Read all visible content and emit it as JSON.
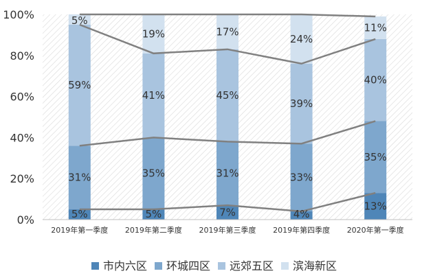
{
  "chart_data": {
    "type": "bar",
    "stacked": true,
    "percent": true,
    "categories": [
      "2019年第一季度",
      "2019年第二季度",
      "2019年第三季度",
      "2019年第四季度",
      "2020年第一季度"
    ],
    "series": [
      {
        "name": "市内六区",
        "values": [
          5,
          5,
          7,
          4,
          13
        ],
        "labels": [
          "5%",
          "5%",
          "7%",
          "4%",
          "13%"
        ],
        "color": "#4f86b8"
      },
      {
        "name": "环城四区",
        "values": [
          31,
          35,
          31,
          33,
          35
        ],
        "labels": [
          "31%",
          "35%",
          "31%",
          "33%",
          "35%"
        ],
        "color": "#7ea7cd"
      },
      {
        "name": "远郊五区",
        "values": [
          59,
          41,
          45,
          39,
          40
        ],
        "labels": [
          "59%",
          "41%",
          "45%",
          "39%",
          "40%"
        ],
        "color": "#a9c4df"
      },
      {
        "name": "滨海新区",
        "values": [
          5,
          19,
          17,
          24,
          11
        ],
        "labels": [
          "5%",
          "19%",
          "17%",
          "24%",
          "11%"
        ],
        "color": "#d2e1ef"
      }
    ],
    "y_ticks": [
      "0%",
      "20%",
      "40%",
      "60%",
      "80%",
      "100%"
    ],
    "ylim": [
      0,
      100
    ],
    "series_lines": true,
    "series_line_color": "#808080",
    "plot_background": "hatched",
    "legend_position": "bottom",
    "grid": false
  }
}
